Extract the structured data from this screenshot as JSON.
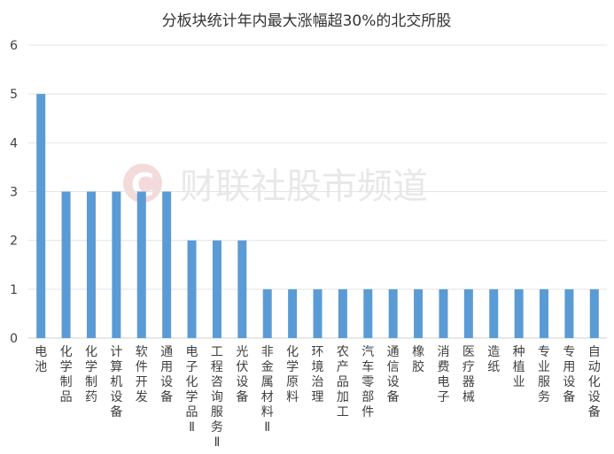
{
  "chart_data": {
    "type": "bar",
    "title": "分板块统计年内最大涨幅超30%的北交所股",
    "categories": [
      "电池",
      "化学制品",
      "化学制药",
      "计算机设备",
      "软件开发",
      "通用设备",
      "电子化学品Ⅱ",
      "工程咨询服务Ⅱ",
      "光伏设备",
      "非金属材料Ⅱ",
      "化学原料",
      "环境治理",
      "农产品加工",
      "汽车零部件",
      "通信设备",
      "橡胶",
      "消费电子",
      "医疗器械",
      "造纸",
      "种植业",
      "专业服务",
      "专用设备",
      "自动化设备"
    ],
    "values": [
      5,
      3,
      3,
      3,
      3,
      3,
      2,
      2,
      2,
      1,
      1,
      1,
      1,
      1,
      1,
      1,
      1,
      1,
      1,
      1,
      1,
      1,
      1
    ],
    "ylim": [
      0,
      6
    ],
    "yticks": [
      0,
      1,
      2,
      3,
      4,
      5,
      6
    ],
    "xlabel": "",
    "ylabel": "",
    "grid": true,
    "bar_color": "#5b9bd5"
  },
  "watermark": {
    "text": "财联社股市频道",
    "logo_letter": "C"
  }
}
